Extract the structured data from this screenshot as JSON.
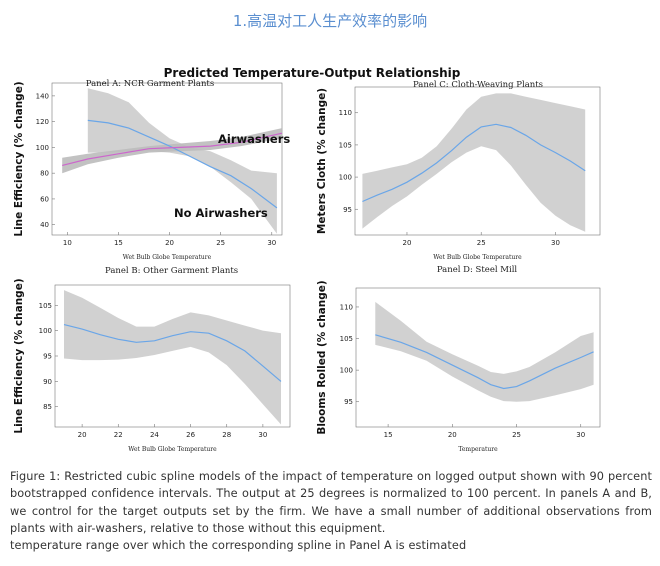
{
  "page": {
    "heading": "1.高温对工人生产效率的影响",
    "figure_title": "Predicted Temperature-Output Relationship",
    "caption": "Figure 1: Restricted cubic spline models of the impact of temperature on logged output shown with 90 percent bootstrapped confidence intervals. The output at 25 degrees is normalized to 100 percent. In panels A and B, we control for the target outputs set by the firm. We have a small number of additional observations from plants with air-washers, relative to those without this equipment.",
    "caption_note": "temperature range over which the corresponding spline in Panel A is estimated"
  },
  "colors": {
    "band": "#cccccc",
    "line": "#6aa6e8",
    "airwasher_line": "#cc66cc",
    "heading": "#5b8fd0"
  },
  "chart_data": [
    {
      "panel": "A",
      "type": "line",
      "title": "Panel A: NCR Garment Plants",
      "xlabel": "Wet Bulb Globe Temperature",
      "ylabel": "Line Efficiency (% change)",
      "xlim": [
        8.5,
        31
      ],
      "ylim": [
        32,
        150
      ],
      "xticks": [
        10,
        15,
        20,
        25,
        30
      ],
      "yticks": [
        40,
        60,
        80,
        100,
        120,
        140
      ],
      "annotations": [
        "Airwashers",
        "No Airwashers"
      ],
      "series": [
        {
          "name": "No Airwashers",
          "x": [
            12,
            14,
            16,
            18,
            20,
            22,
            24,
            26,
            28,
            30.5
          ],
          "y": [
            121,
            119,
            115,
            108,
            101,
            93,
            85,
            78,
            68,
            53
          ],
          "lower": [
            96,
            96,
            97,
            97,
            96,
            93,
            85,
            73,
            60,
            33
          ],
          "upper": [
            146,
            142,
            135,
            119,
            107,
            100,
            97,
            90,
            82,
            80
          ]
        },
        {
          "name": "Airwashers",
          "x": [
            9.5,
            12,
            15,
            18,
            21,
            24,
            27,
            31
          ],
          "y": [
            86,
            91,
            95,
            99,
            100,
            101,
            104,
            111
          ],
          "lower": [
            80,
            87,
            92,
            96,
            97,
            98,
            101,
            107
          ],
          "upper": [
            92,
            95,
            98,
            101,
            103,
            105,
            108,
            115
          ]
        }
      ]
    },
    {
      "panel": "B",
      "type": "line",
      "title": "Panel B: Other Garment Plants",
      "xlabel": "Wet Bulb Globe Temperature",
      "ylabel": "Line Efficiency (% change)",
      "xlim": [
        18.5,
        31.5
      ],
      "ylim": [
        81,
        109
      ],
      "xticks": [
        20,
        22,
        24,
        26,
        28,
        30
      ],
      "yticks": [
        85,
        90,
        95,
        100,
        105
      ],
      "series": [
        {
          "x": [
            19,
            20,
            21,
            22,
            23,
            24,
            25,
            26,
            27,
            28,
            29,
            30,
            31
          ],
          "y": [
            101.2,
            100.3,
            99.2,
            98.3,
            97.7,
            98.0,
            99.0,
            99.8,
            99.5,
            98.0,
            96.0,
            93.0,
            90.0
          ],
          "lower": [
            94.5,
            94.2,
            94.2,
            94.3,
            94.6,
            95.2,
            96.0,
            96.8,
            95.7,
            93.2,
            89.5,
            85.5,
            81.5
          ],
          "upper": [
            108,
            106.5,
            104.5,
            102.5,
            100.8,
            100.8,
            102.3,
            103.6,
            103.0,
            102.0,
            101.0,
            100.0,
            99.5
          ]
        }
      ]
    },
    {
      "panel": "C",
      "type": "line",
      "title": "Panel C: Cloth-Weaving Plants",
      "xlabel": "Wet Bulb Globe Temperature",
      "ylabel": "Meters Cloth (% change)",
      "xlim": [
        16.5,
        33
      ],
      "ylim": [
        91,
        114
      ],
      "xticks": [
        20,
        25,
        30
      ],
      "yticks": [
        95,
        100,
        105,
        110
      ],
      "series": [
        {
          "x": [
            17,
            18,
            19,
            20,
            21,
            22,
            23,
            24,
            25,
            26,
            27,
            28,
            29,
            30,
            31,
            32
          ],
          "y": [
            96.2,
            97.2,
            98.1,
            99.2,
            100.6,
            102.2,
            104.1,
            106.2,
            107.8,
            108.2,
            107.7,
            106.5,
            105.0,
            103.8,
            102.5,
            101.0
          ],
          "lower": [
            92,
            93.8,
            95.5,
            97,
            98.8,
            100.5,
            102.3,
            103.8,
            104.8,
            104.2,
            101.8,
            98.8,
            96,
            94,
            92.5,
            91.5
          ],
          "upper": [
            100.5,
            101,
            101.5,
            102,
            103,
            104.8,
            107.5,
            110.5,
            112.5,
            113,
            113,
            112.5,
            112,
            111.5,
            111,
            110.5
          ]
        }
      ]
    },
    {
      "panel": "D",
      "type": "line",
      "title": "Panel D: Steel Mill",
      "xlabel": "Temperature",
      "ylabel": "Blooms Rolled (% change)",
      "xlim": [
        12.5,
        31.5
      ],
      "ylim": [
        91,
        113
      ],
      "xticks": [
        15,
        20,
        25,
        30
      ],
      "yticks": [
        95,
        100,
        105,
        110
      ],
      "series": [
        {
          "x": [
            14,
            16,
            18,
            20,
            22,
            23,
            24,
            25,
            26,
            28,
            30,
            31
          ],
          "y": [
            105.6,
            104.4,
            102.8,
            100.8,
            98.8,
            97.7,
            97.1,
            97.4,
            98.3,
            100.3,
            102.0,
            102.9
          ],
          "lower": [
            104.0,
            103.0,
            101.5,
            99.0,
            96.8,
            95.8,
            95.1,
            95.0,
            95.1,
            96.0,
            97.0,
            97.7
          ],
          "upper": [
            110.8,
            107.8,
            104.5,
            102.5,
            100.7,
            99.7,
            99.4,
            99.8,
            100.5,
            102.8,
            105.4,
            106.0
          ]
        }
      ]
    }
  ]
}
